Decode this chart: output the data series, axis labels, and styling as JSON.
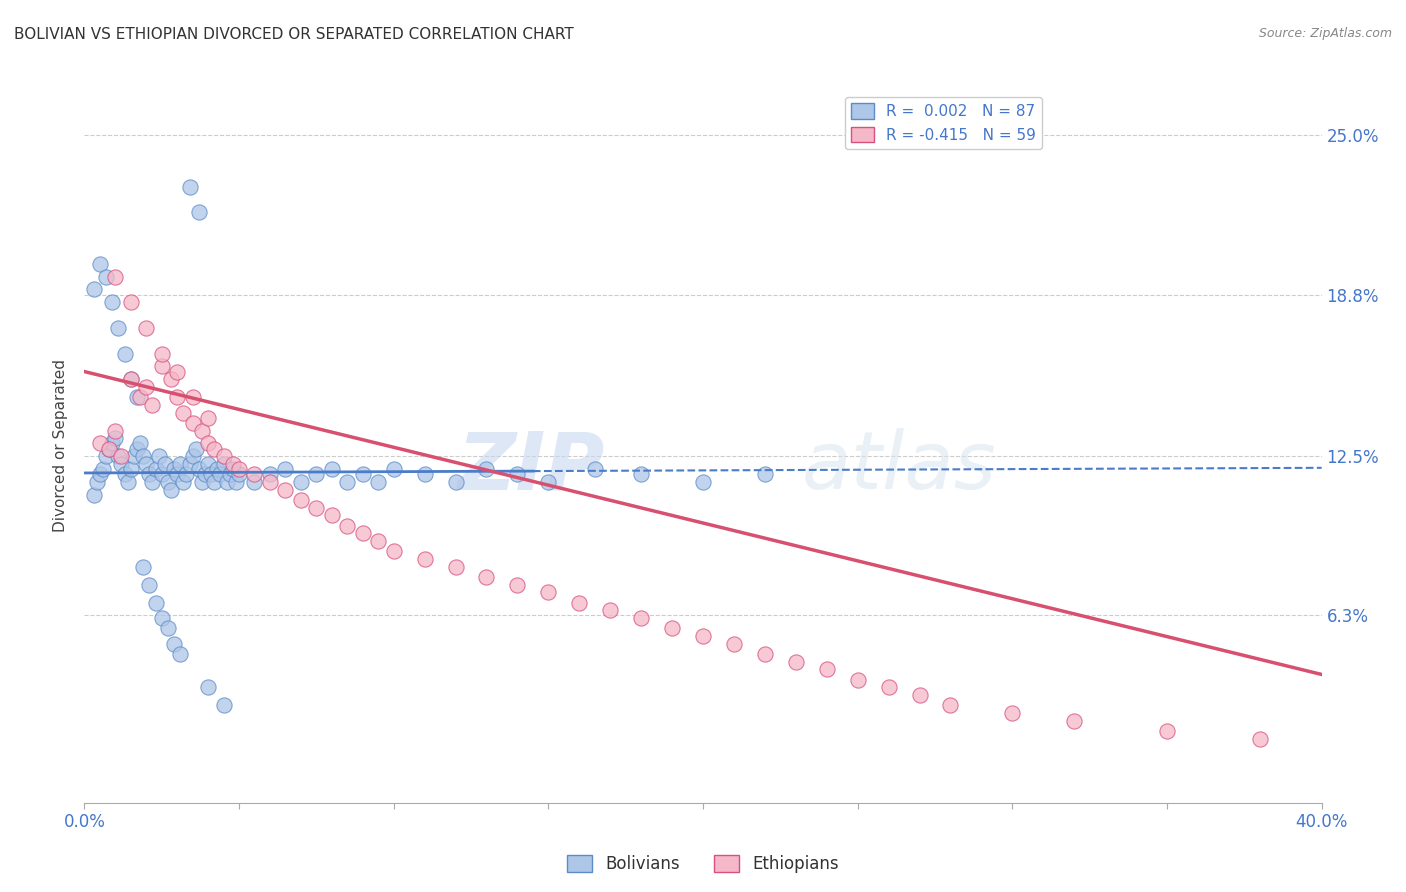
{
  "title": "BOLIVIAN VS ETHIOPIAN DIVORCED OR SEPARATED CORRELATION CHART",
  "source": "Source: ZipAtlas.com",
  "ylabel": "Divorced or Separated",
  "bolivian_color": "#aec6e8",
  "bolivian_edge": "#5b8cc8",
  "ethiopian_color": "#f4b8c8",
  "ethiopian_edge": "#d85080",
  "trend_bolivian_color": "#4a7cc9",
  "trend_ethiopian_color": "#d85070",
  "watermark_color": "#d0dff0",
  "background_color": "#ffffff",
  "grid_color": "#cccccc",
  "xmin": 0.0,
  "xmax": 0.4,
  "ymin": -0.01,
  "ymax": 0.268,
  "ytick_vals": [
    0.0,
    0.063,
    0.125,
    0.188,
    0.25
  ],
  "ytick_labels": [
    "",
    "6.3%",
    "12.5%",
    "18.8%",
    "25.0%"
  ],
  "bolivian_x": [
    0.003,
    0.004,
    0.005,
    0.006,
    0.007,
    0.008,
    0.009,
    0.01,
    0.011,
    0.012,
    0.013,
    0.014,
    0.015,
    0.016,
    0.017,
    0.018,
    0.019,
    0.02,
    0.021,
    0.022,
    0.023,
    0.024,
    0.025,
    0.026,
    0.027,
    0.028,
    0.029,
    0.03,
    0.031,
    0.032,
    0.033,
    0.034,
    0.035,
    0.036,
    0.037,
    0.038,
    0.039,
    0.04,
    0.041,
    0.042,
    0.043,
    0.044,
    0.045,
    0.046,
    0.047,
    0.048,
    0.049,
    0.05,
    0.055,
    0.06,
    0.065,
    0.07,
    0.075,
    0.08,
    0.085,
    0.09,
    0.095,
    0.1,
    0.11,
    0.12,
    0.13,
    0.14,
    0.15,
    0.165,
    0.18,
    0.2,
    0.22,
    0.003,
    0.005,
    0.007,
    0.009,
    0.011,
    0.013,
    0.015,
    0.017,
    0.019,
    0.021,
    0.023,
    0.025,
    0.027,
    0.029,
    0.031,
    0.034,
    0.037,
    0.04,
    0.045
  ],
  "bolivian_y": [
    0.11,
    0.115,
    0.118,
    0.12,
    0.125,
    0.128,
    0.13,
    0.132,
    0.125,
    0.122,
    0.118,
    0.115,
    0.12,
    0.125,
    0.128,
    0.13,
    0.125,
    0.122,
    0.118,
    0.115,
    0.12,
    0.125,
    0.118,
    0.122,
    0.115,
    0.112,
    0.12,
    0.118,
    0.122,
    0.115,
    0.118,
    0.122,
    0.125,
    0.128,
    0.12,
    0.115,
    0.118,
    0.122,
    0.118,
    0.115,
    0.12,
    0.118,
    0.122,
    0.115,
    0.118,
    0.12,
    0.115,
    0.118,
    0.115,
    0.118,
    0.12,
    0.115,
    0.118,
    0.12,
    0.115,
    0.118,
    0.115,
    0.12,
    0.118,
    0.115,
    0.12,
    0.118,
    0.115,
    0.12,
    0.118,
    0.115,
    0.118,
    0.19,
    0.2,
    0.195,
    0.185,
    0.175,
    0.165,
    0.155,
    0.148,
    0.082,
    0.075,
    0.068,
    0.062,
    0.058,
    0.052,
    0.048,
    0.23,
    0.22,
    0.035,
    0.028
  ],
  "ethiopian_x": [
    0.005,
    0.008,
    0.01,
    0.012,
    0.015,
    0.018,
    0.02,
    0.022,
    0.025,
    0.028,
    0.03,
    0.032,
    0.035,
    0.038,
    0.04,
    0.042,
    0.045,
    0.048,
    0.05,
    0.055,
    0.06,
    0.065,
    0.07,
    0.075,
    0.08,
    0.085,
    0.09,
    0.095,
    0.1,
    0.11,
    0.12,
    0.13,
    0.14,
    0.15,
    0.16,
    0.17,
    0.18,
    0.19,
    0.2,
    0.21,
    0.22,
    0.23,
    0.24,
    0.25,
    0.26,
    0.27,
    0.28,
    0.3,
    0.32,
    0.35,
    0.38,
    0.01,
    0.015,
    0.02,
    0.025,
    0.03,
    0.035,
    0.04
  ],
  "ethiopian_y": [
    0.13,
    0.128,
    0.135,
    0.125,
    0.155,
    0.148,
    0.152,
    0.145,
    0.16,
    0.155,
    0.148,
    0.142,
    0.138,
    0.135,
    0.13,
    0.128,
    0.125,
    0.122,
    0.12,
    0.118,
    0.115,
    0.112,
    0.108,
    0.105,
    0.102,
    0.098,
    0.095,
    0.092,
    0.088,
    0.085,
    0.082,
    0.078,
    0.075,
    0.072,
    0.068,
    0.065,
    0.062,
    0.058,
    0.055,
    0.052,
    0.048,
    0.045,
    0.042,
    0.038,
    0.035,
    0.032,
    0.028,
    0.025,
    0.022,
    0.018,
    0.015,
    0.195,
    0.185,
    0.175,
    0.165,
    0.158,
    0.148,
    0.14
  ],
  "bolivian_trend_x": [
    0.0,
    0.4
  ],
  "bolivian_trend_y": [
    0.1185,
    0.1205
  ],
  "bolivian_trend_solid_end": 0.145,
  "ethiopian_trend_x": [
    0.0,
    0.4
  ],
  "ethiopian_trend_y": [
    0.158,
    0.04
  ]
}
